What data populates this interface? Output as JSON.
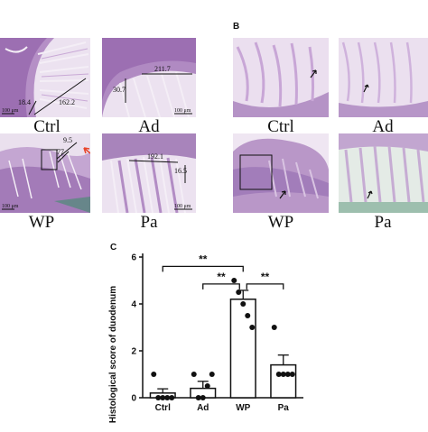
{
  "panels": {
    "a": {
      "images": [
        {
          "label": "Ctrl",
          "annotations": [
            "18.4",
            "162.2"
          ],
          "scale_bar": "100 μm"
        },
        {
          "label": "Ad",
          "annotations": [
            "211.7",
            "30.7"
          ],
          "scale_bar": "100 μm"
        },
        {
          "label": "WP",
          "annotations": [
            "9.5",
            "77"
          ],
          "scale_bar": "100 μm"
        },
        {
          "label": "Pa",
          "annotations": [
            "192.1",
            "16.5"
          ],
          "scale_bar": "100 μm"
        }
      ]
    },
    "b": {
      "letter": "B",
      "images": [
        {
          "label": "Ctrl"
        },
        {
          "label": "Ad"
        },
        {
          "label": "WP"
        },
        {
          "label": "Pa"
        }
      ]
    },
    "c": {
      "letter": "C"
    }
  },
  "colors": {
    "tissue_purple": "#9c6fb2",
    "tissue_light": "#d9c4e2",
    "background_tissue": "#e9dcef",
    "arrow_red": "#e8442a"
  },
  "chart_data": {
    "type": "bar",
    "categories": [
      "Ctrl",
      "Ad",
      "WP",
      "Pa"
    ],
    "values": [
      0.2,
      0.4,
      4.2,
      1.4
    ],
    "errors": [
      0.18,
      0.3,
      0.38,
      0.42
    ],
    "points": [
      [
        1,
        0,
        0,
        0,
        0
      ],
      [
        1,
        0,
        0,
        0.5,
        1
      ],
      [
        5,
        4.5,
        4,
        3.5,
        3
      ],
      [
        3,
        1,
        1,
        1,
        1
      ]
    ],
    "ylabel": "Histological score of duodenum",
    "ylim": [
      0,
      6
    ],
    "yticks": [
      0,
      2,
      4,
      6
    ],
    "significance": [
      {
        "from": "Ctrl",
        "to": "WP",
        "label": "**"
      },
      {
        "from": "Ad",
        "to": "WP",
        "label": "**"
      },
      {
        "from": "WP",
        "to": "Pa",
        "label": "**"
      }
    ]
  }
}
